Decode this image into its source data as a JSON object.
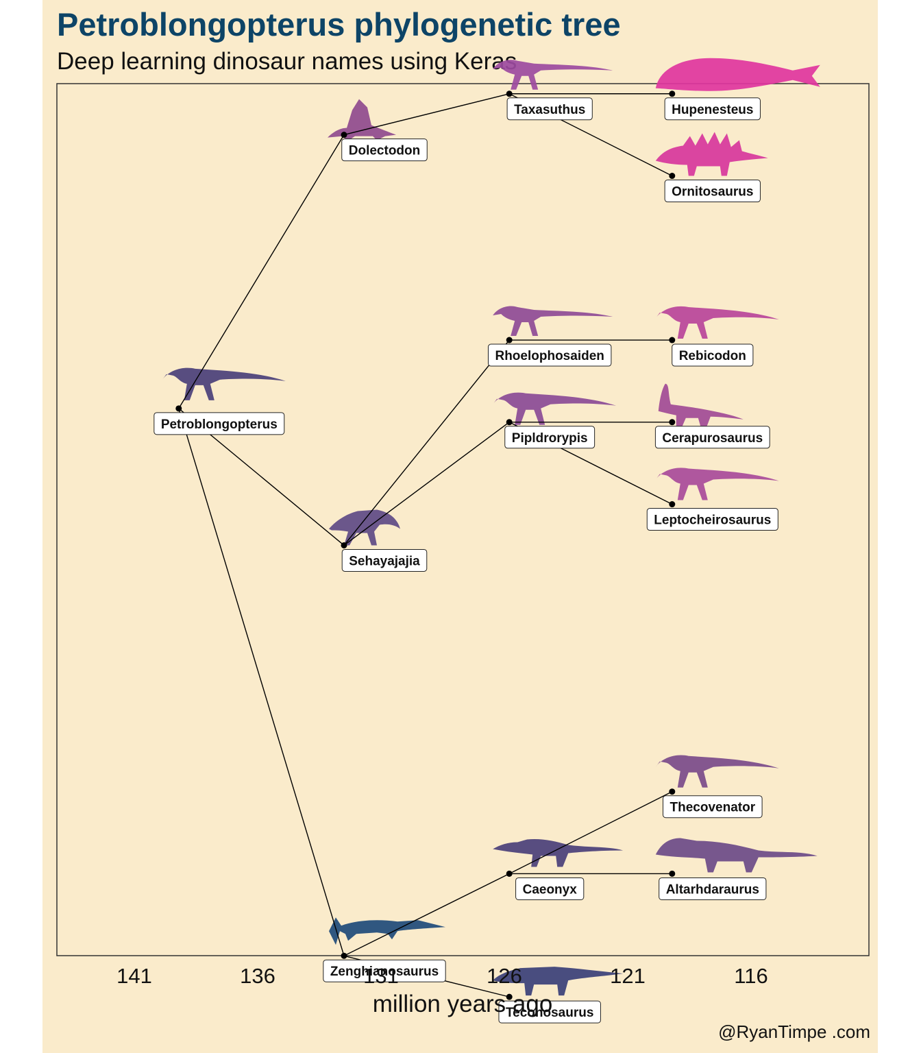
{
  "title": "Petroblongopterus phylogenetic tree",
  "subtitle": "Deep learning dinosaur names using Keras",
  "caption": "@RyanTimpe .com",
  "colors": {
    "background": "#faebcb",
    "title": "#0d4467",
    "edge": "#000000",
    "label_box": "#ffffff"
  },
  "chart_data": {
    "type": "tree",
    "xlabel": "million years ago",
    "x_ticks": [
      141,
      136,
      131,
      126,
      121,
      116
    ],
    "x_reversed": true,
    "nodes": [
      {
        "name": "Petroblongopterus",
        "x": 139.2,
        "y": 4.2,
        "color": "#4a3f7a",
        "silhouette": "theropod"
      },
      {
        "name": "Dolectodon",
        "x": 132.5,
        "y": 8.2,
        "color": "#8f4a8e",
        "silhouette": "sail-back"
      },
      {
        "name": "Sehayajajia",
        "x": 132.5,
        "y": 2.2,
        "color": "#5e4a85",
        "silhouette": "feathered-theropod"
      },
      {
        "name": "Zenghianosaurus",
        "x": 132.5,
        "y": -3.8,
        "color": "#1e4a7a",
        "silhouette": "ichthyosaur"
      },
      {
        "name": "Taxasuthus",
        "x": 125.8,
        "y": 8.8,
        "color": "#9c4aa0",
        "silhouette": "small-theropod"
      },
      {
        "name": "Rhoelophosaiden",
        "x": 125.8,
        "y": 5.2,
        "color": "#8e4a96",
        "silhouette": "small-theropod"
      },
      {
        "name": "Pipldrorypis",
        "x": 125.8,
        "y": 4.0,
        "color": "#8a4a96",
        "silhouette": "theropod"
      },
      {
        "name": "Caeonyx",
        "x": 125.8,
        "y": -2.6,
        "color": "#4a3f7a",
        "silhouette": "crocodile-theropod"
      },
      {
        "name": "Teconosaurus",
        "x": 125.8,
        "y": -4.4,
        "color": "#3a3f78",
        "silhouette": "ankylosaur"
      },
      {
        "name": "Hupenesteus",
        "x": 119.2,
        "y": 8.8,
        "color": "#e0359e",
        "silhouette": "fish"
      },
      {
        "name": "Ornitosaurus",
        "x": 119.2,
        "y": 7.6,
        "color": "#d7369c",
        "silhouette": "spiked"
      },
      {
        "name": "Rebicodon",
        "x": 119.2,
        "y": 5.2,
        "color": "#b8449a",
        "silhouette": "theropod"
      },
      {
        "name": "Cerapurosaurus",
        "x": 119.2,
        "y": 4.0,
        "color": "#a14a96",
        "silhouette": "sauropod"
      },
      {
        "name": "Leptocheirosaurus",
        "x": 119.2,
        "y": 2.8,
        "color": "#a84a9a",
        "silhouette": "theropod"
      },
      {
        "name": "Thecovenator",
        "x": 119.2,
        "y": -1.4,
        "color": "#7a4a8a",
        "silhouette": "theropod"
      },
      {
        "name": "Altarhdaraurus",
        "x": 119.2,
        "y": -2.6,
        "color": "#6b4a88",
        "silhouette": "hadrosaur"
      }
    ],
    "edges": [
      [
        "Petroblongopterus",
        "Dolectodon"
      ],
      [
        "Petroblongopterus",
        "Sehayajajia"
      ],
      [
        "Petroblongopterus",
        "Zenghianosaurus"
      ],
      [
        "Dolectodon",
        "Taxasuthus"
      ],
      [
        "Taxasuthus",
        "Hupenesteus"
      ],
      [
        "Taxasuthus",
        "Ornitosaurus"
      ],
      [
        "Sehayajajia",
        "Rhoelophosaiden"
      ],
      [
        "Rhoelophosaiden",
        "Rebicodon"
      ],
      [
        "Sehayajajia",
        "Pipldrorypis"
      ],
      [
        "Pipldrorypis",
        "Cerapurosaurus"
      ],
      [
        "Pipldrorypis",
        "Leptocheirosaurus"
      ],
      [
        "Zenghianosaurus",
        "Caeonyx"
      ],
      [
        "Caeonyx",
        "Thecovenator"
      ],
      [
        "Caeonyx",
        "Altarhdaraurus"
      ],
      [
        "Zenghianosaurus",
        "Teconosaurus"
      ]
    ]
  }
}
